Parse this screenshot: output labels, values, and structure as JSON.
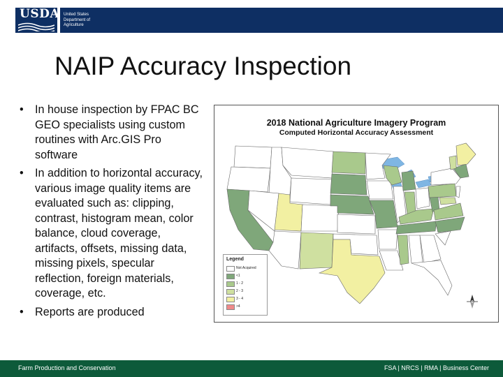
{
  "header": {
    "logo_text": "USDA",
    "dept_lines": [
      "United States",
      "Department of",
      "Agriculture"
    ]
  },
  "slide": {
    "title": "NAIP Accuracy Inspection",
    "bullets": [
      "In house inspection by FPAC BC GEO specialists using custom routines with Arc.GIS Pro software",
      "In addition to horizontal accuracy, various image quality items are evaluated such as: clipping, contrast, histogram mean, color balance, cloud coverage, artifacts, offsets, missing data, missing pixels, specular reflection, foreign materials, coverage, etc.",
      "Reports are produced"
    ],
    "bullet_glyph": "•"
  },
  "map": {
    "title": "2018 National Agriculture Imagery Program",
    "subtitle": "Computed Horizontal Accuracy Assessment",
    "legend": {
      "title": "Legend",
      "items": [
        {
          "label": "Not Acquired",
          "color": "#ffffff"
        },
        {
          "label": "<1",
          "color": "#7fa77a"
        },
        {
          "label": "1 - 2",
          "color": "#a9c98c"
        },
        {
          "label": "2 - 3",
          "color": "#cfe0a0"
        },
        {
          "label": "3 - 4",
          "color": "#f2f0a2"
        },
        {
          "label": ">4",
          "color": "#f08a8a"
        }
      ]
    },
    "colors": {
      "not_acquired": "#ffffff",
      "lt1": "#7fa77a",
      "one_two": "#a9c98c",
      "two_three": "#cfe0a0",
      "three_four": "#f2f0a2",
      "water": "#7fb6e3"
    }
  },
  "footer": {
    "left": "Farm Production and Conservation",
    "right": "FSA | NRCS | RMA | Business Center"
  },
  "colors": {
    "usda_blue": "#0e2f63",
    "footer_green": "#0d5a3a"
  }
}
